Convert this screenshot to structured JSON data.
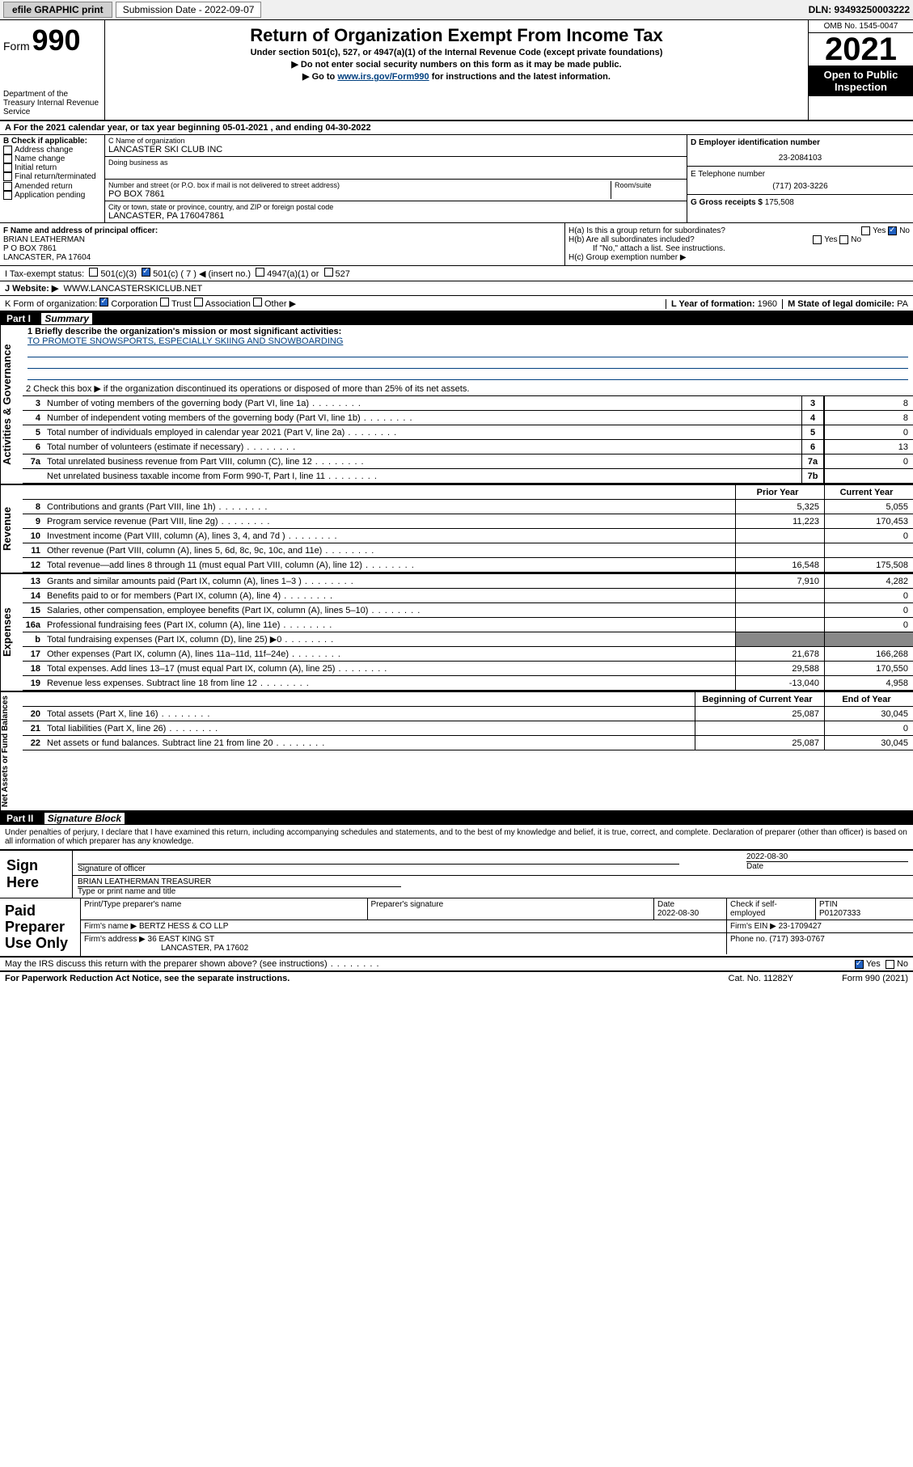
{
  "topbar": {
    "efile": "efile GRAPHIC print",
    "submission_label": "Submission Date - 2022-09-07",
    "dln": "DLN: 93493250003222"
  },
  "header": {
    "form_word": "Form",
    "form_num": "990",
    "dept": "Department of the Treasury Internal Revenue Service",
    "title": "Return of Organization Exempt From Income Tax",
    "sub1": "Under section 501(c), 527, or 4947(a)(1) of the Internal Revenue Code (except private foundations)",
    "sub2": "▶ Do not enter social security numbers on this form as it may be made public.",
    "sub3_pre": "▶ Go to ",
    "sub3_link": "www.irs.gov/Form990",
    "sub3_post": " for instructions and the latest information.",
    "omb": "OMB No. 1545-0047",
    "year": "2021",
    "open": "Open to Public Inspection"
  },
  "line_a": "A For the 2021 calendar year, or tax year beginning 05-01-2021  , and ending 04-30-2022",
  "col_b": {
    "header": "B Check if applicable:",
    "items": [
      "Address change",
      "Name change",
      "Initial return",
      "Final return/terminated",
      "Amended return",
      "Application pending"
    ]
  },
  "col_c": {
    "name_label": "C Name of organization",
    "name": "LANCASTER SKI CLUB INC",
    "dba_label": "Doing business as",
    "addr_label": "Number and street (or P.O. box if mail is not delivered to street address)",
    "room_label": "Room/suite",
    "addr": "PO BOX 7861",
    "city_label": "City or town, state or province, country, and ZIP or foreign postal code",
    "city": "LANCASTER, PA  176047861"
  },
  "col_d": {
    "ein_label": "D Employer identification number",
    "ein": "23-2084103",
    "phone_label": "E Telephone number",
    "phone": "(717) 203-3226",
    "gross_label": "G Gross receipts $ ",
    "gross": "175,508"
  },
  "officer": {
    "label": "F  Name and address of principal officer:",
    "name": "BRIAN LEATHERMAN",
    "addr1": "P O BOX 7861",
    "addr2": "LANCASTER, PA  17604"
  },
  "h": {
    "ha": "H(a)  Is this a group return for subordinates?",
    "hb": "H(b)  Are all subordinates included?",
    "hb_note": "If \"No,\" attach a list. See instructions.",
    "hc": "H(c)  Group exemption number ▶",
    "yes": "Yes",
    "no": "No"
  },
  "status": {
    "I": "I  Tax-exempt status:",
    "c3": "501(c)(3)",
    "c": "501(c) ( 7 ) ◀ (insert no.)",
    "a1": "4947(a)(1) or",
    "527": "527",
    "J": "J  Website: ▶",
    "website": "WWW.LANCASTERSKICLUB.NET",
    "K": "K Form of organization:",
    "corp": "Corporation",
    "trust": "Trust",
    "assoc": "Association",
    "other": "Other ▶",
    "L": "L Year of formation: ",
    "L_val": "1960",
    "M": "M State of legal domicile: ",
    "M_val": "PA"
  },
  "part1_label": "Part I",
  "part1_title": "Summary",
  "briefly": {
    "q": "1  Briefly describe the organization's mission or most significant activities:",
    "a": "TO PROMOTE SNOWSPORTS, ESPECIALLY SKIING AND SNOWBOARDING"
  },
  "governance_label": "Activities & Governance",
  "revenue_label": "Revenue",
  "expenses_label": "Expenses",
  "netassets_label": "Net Assets or Fund Balances",
  "line2": "2   Check this box ▶     if the organization discontinued its operations or disposed of more than 25% of its net assets.",
  "gov_rows": [
    {
      "n": "3",
      "d": "Number of voting members of the governing body (Part VI, line 1a)",
      "box": "3",
      "v": "8"
    },
    {
      "n": "4",
      "d": "Number of independent voting members of the governing body (Part VI, line 1b)",
      "box": "4",
      "v": "8"
    },
    {
      "n": "5",
      "d": "Total number of individuals employed in calendar year 2021 (Part V, line 2a)",
      "box": "5",
      "v": "0"
    },
    {
      "n": "6",
      "d": "Total number of volunteers (estimate if necessary)",
      "box": "6",
      "v": "13"
    },
    {
      "n": "7a",
      "d": "Total unrelated business revenue from Part VIII, column (C), line 12",
      "box": "7a",
      "v": "0"
    },
    {
      "n": "",
      "d": "Net unrelated business taxable income from Form 990-T, Part I, line 11",
      "box": "7b",
      "v": ""
    }
  ],
  "col_headers": {
    "prior": "Prior Year",
    "current": "Current Year",
    "begin": "Beginning of Current Year",
    "end": "End of Year"
  },
  "rev_rows": [
    {
      "n": "8",
      "d": "Contributions and grants (Part VIII, line 1h)",
      "p": "5,325",
      "c": "5,055"
    },
    {
      "n": "9",
      "d": "Program service revenue (Part VIII, line 2g)",
      "p": "11,223",
      "c": "170,453"
    },
    {
      "n": "10",
      "d": "Investment income (Part VIII, column (A), lines 3, 4, and 7d )",
      "p": "",
      "c": "0"
    },
    {
      "n": "11",
      "d": "Other revenue (Part VIII, column (A), lines 5, 6d, 8c, 9c, 10c, and 11e)",
      "p": "",
      "c": ""
    },
    {
      "n": "12",
      "d": "Total revenue—add lines 8 through 11 (must equal Part VIII, column (A), line 12)",
      "p": "16,548",
      "c": "175,508"
    }
  ],
  "exp_rows": [
    {
      "n": "13",
      "d": "Grants and similar amounts paid (Part IX, column (A), lines 1–3 )",
      "p": "7,910",
      "c": "4,282"
    },
    {
      "n": "14",
      "d": "Benefits paid to or for members (Part IX, column (A), line 4)",
      "p": "",
      "c": "0"
    },
    {
      "n": "15",
      "d": "Salaries, other compensation, employee benefits (Part IX, column (A), lines 5–10)",
      "p": "",
      "c": "0"
    },
    {
      "n": "16a",
      "d": "Professional fundraising fees (Part IX, column (A), line 11e)",
      "p": "",
      "c": "0"
    },
    {
      "n": "b",
      "d": "Total fundraising expenses (Part IX, column (D), line 25) ▶0",
      "p": "shaded",
      "c": "shaded"
    },
    {
      "n": "17",
      "d": "Other expenses (Part IX, column (A), lines 11a–11d, 11f–24e)",
      "p": "21,678",
      "c": "166,268"
    },
    {
      "n": "18",
      "d": "Total expenses. Add lines 13–17 (must equal Part IX, column (A), line 25)",
      "p": "29,588",
      "c": "170,550"
    },
    {
      "n": "19",
      "d": "Revenue less expenses. Subtract line 18 from line 12",
      "p": "-13,040",
      "c": "4,958"
    }
  ],
  "na_rows": [
    {
      "n": "20",
      "d": "Total assets (Part X, line 16)",
      "p": "25,087",
      "c": "30,045"
    },
    {
      "n": "21",
      "d": "Total liabilities (Part X, line 26)",
      "p": "",
      "c": "0"
    },
    {
      "n": "22",
      "d": "Net assets or fund balances. Subtract line 21 from line 20",
      "p": "25,087",
      "c": "30,045"
    }
  ],
  "part2_label": "Part II",
  "part2_title": "Signature Block",
  "perjury": "Under penalties of perjury, I declare that I have examined this return, including accompanying schedules and statements, and to the best of my knowledge and belief, it is true, correct, and complete. Declaration of preparer (other than officer) is based on all information of which preparer has any knowledge.",
  "sign": {
    "here": "Sign Here",
    "sig_label": "Signature of officer",
    "date": "2022-08-30",
    "date_label": "Date",
    "name": "BRIAN LEATHERMAN  TREASURER",
    "name_label": "Type or print name and title"
  },
  "paid": {
    "title": "Paid Preparer Use Only",
    "h_print": "Print/Type preparer's name",
    "h_sig": "Preparer's signature",
    "h_date": "Date",
    "date": "2022-08-30",
    "h_check": "Check       if self-employed",
    "h_ptin": "PTIN",
    "ptin": "P01207333",
    "firm_name_lbl": "Firm's name    ▶ ",
    "firm_name": "BERTZ HESS & CO LLP",
    "firm_ein_lbl": "Firm's EIN ▶ ",
    "firm_ein": "23-1709427",
    "firm_addr_lbl": "Firm's address ▶ ",
    "firm_addr1": "36 EAST KING ST",
    "firm_addr2": "LANCASTER, PA  17602",
    "phone_lbl": "Phone no. ",
    "phone": "(717) 393-0767"
  },
  "discuss": "May the IRS discuss this return with the preparer shown above? (see instructions)",
  "footer": {
    "left": "For Paperwork Reduction Act Notice, see the separate instructions.",
    "mid": "Cat. No. 11282Y",
    "right": "Form 990 (2021)"
  },
  "colors": {
    "link": "#004080",
    "check_blue": "#2060c0",
    "shade": "#888888"
  }
}
